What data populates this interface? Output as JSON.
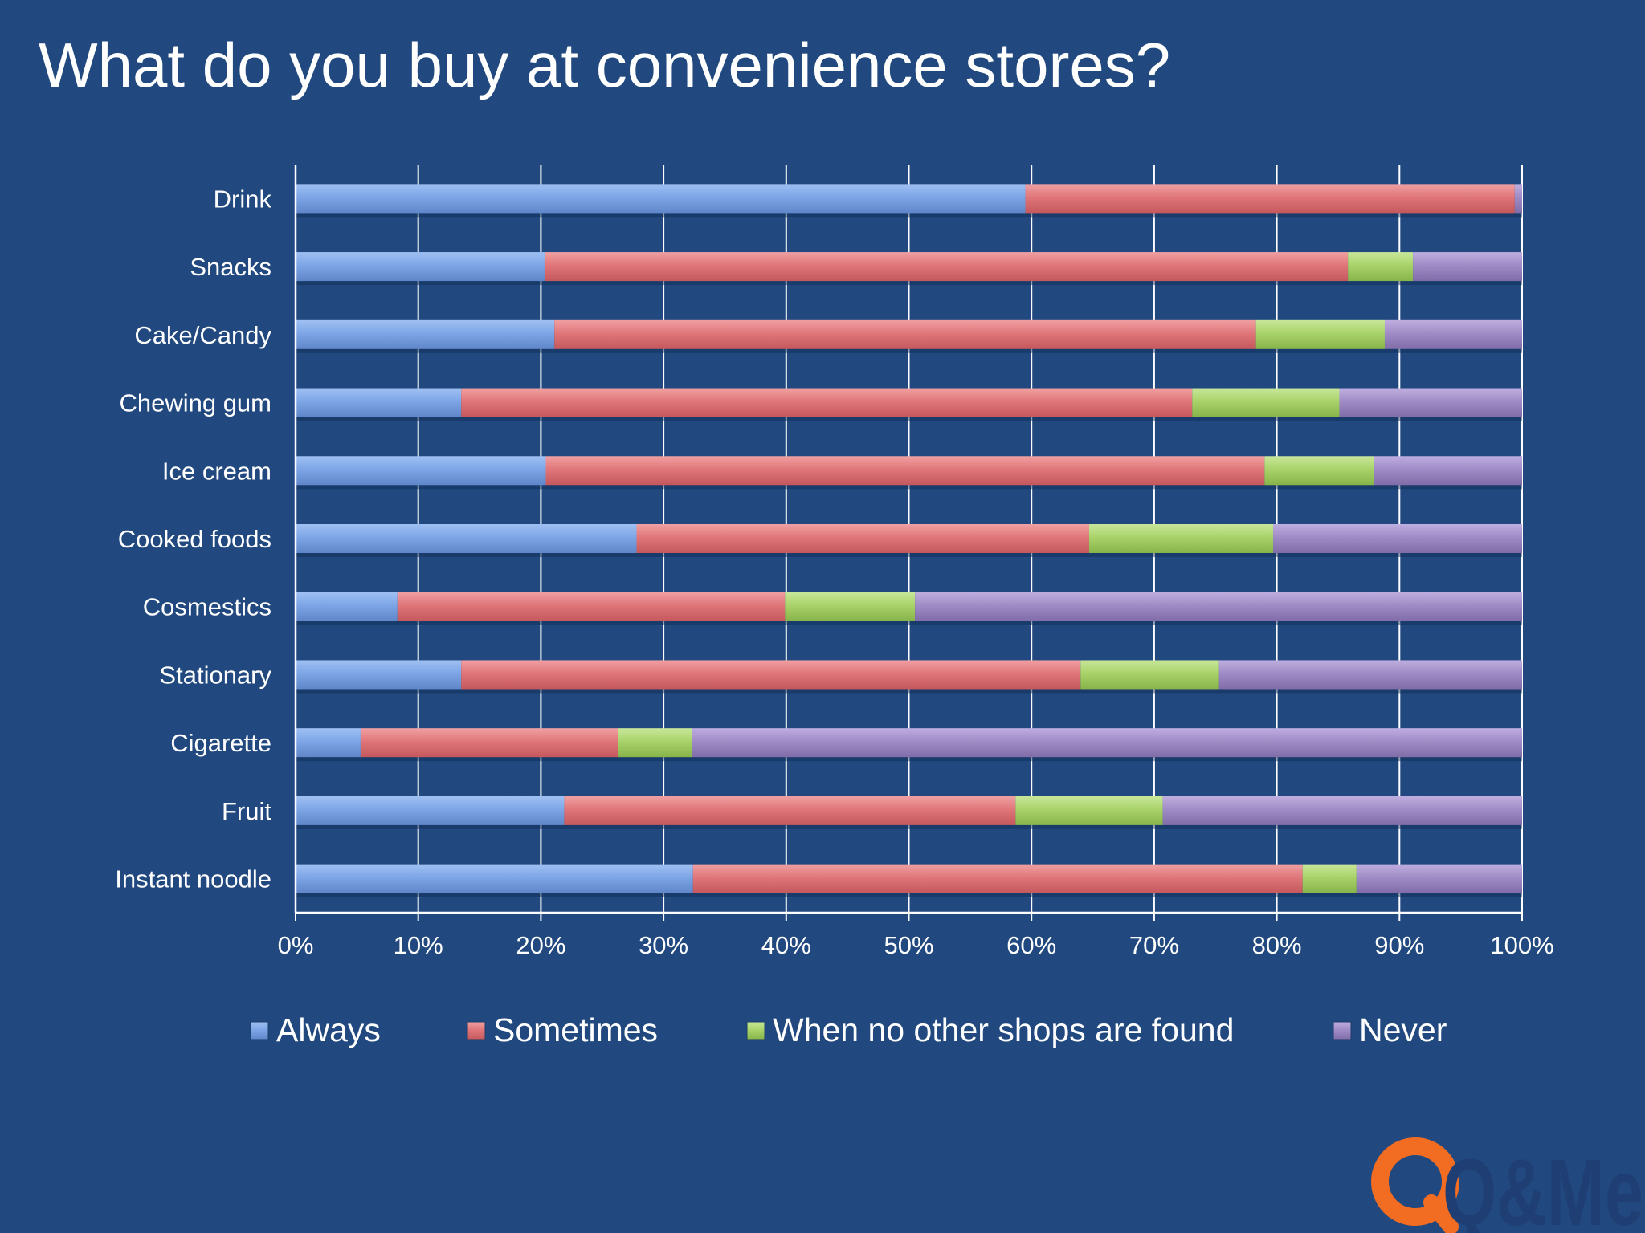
{
  "page": {
    "title": "What do you buy at convenience stores?"
  },
  "logo": {
    "text": "Q&Me",
    "icon": "magnifier-logo-icon"
  },
  "colors": {
    "background": "#21497f",
    "Always": "#7ea6e6",
    "Sometimes": "#e0767a",
    "When no other shops are found": "#a9d36a",
    "Never": "#a08cc6",
    "logo_orange": "#f26c21"
  },
  "chart_data": {
    "type": "bar",
    "orientation": "horizontal",
    "stacked": "percent",
    "title": "What do you buy at convenience stores?",
    "categories": [
      "Drink",
      "Snacks",
      "Cake/Candy",
      "Chewing gum",
      "Ice cream",
      "Cooked foods",
      "Cosmestics",
      "Stationary",
      "Cigarette",
      "Fruit",
      "Instant noodle"
    ],
    "series": [
      {
        "name": "Always",
        "values": [
          59.5,
          20.3,
          21.1,
          13.5,
          20.4,
          27.8,
          8.3,
          13.5,
          5.3,
          21.9,
          32.4
        ]
      },
      {
        "name": "Sometimes",
        "values": [
          39.9,
          65.5,
          57.2,
          59.6,
          58.6,
          36.9,
          31.6,
          50.5,
          21.0,
          36.8,
          49.7
        ]
      },
      {
        "name": "When no other shops are found",
        "values": [
          0.0,
          5.3,
          10.5,
          12.0,
          8.9,
          15.0,
          10.6,
          11.3,
          6.0,
          12.0,
          4.4
        ]
      },
      {
        "name": "Never",
        "values": [
          0.6,
          8.9,
          11.2,
          14.9,
          12.1,
          20.3,
          49.5,
          24.7,
          67.7,
          29.3,
          13.5
        ]
      }
    ],
    "xlim": [
      0,
      100
    ],
    "x_ticks": [
      "0%",
      "10%",
      "20%",
      "30%",
      "40%",
      "50%",
      "60%",
      "70%",
      "80%",
      "90%",
      "100%"
    ],
    "grid": "vertical",
    "legend_position": "bottom",
    "legend": [
      "Always",
      "Sometimes",
      "When no other shops are found",
      "Never"
    ]
  }
}
